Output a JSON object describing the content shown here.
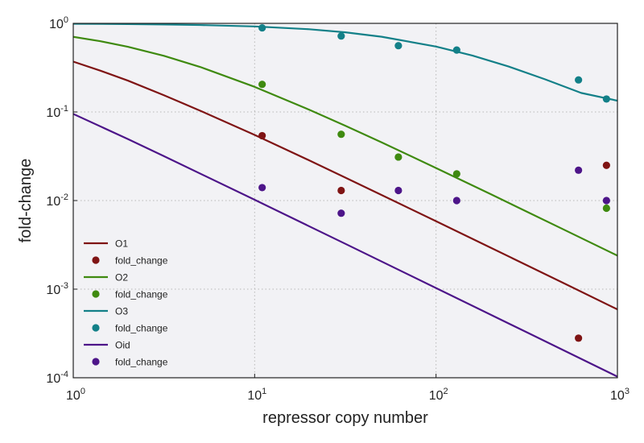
{
  "chart_data": {
    "type": "line",
    "xlabel": "repressor copy number",
    "ylabel": "fold-change",
    "xscale": "log",
    "yscale": "log",
    "xlim": [
      1,
      1000
    ],
    "ylim": [
      0.0001,
      1
    ],
    "grid": true,
    "legend_position": "lower-left",
    "x_ticks": [
      {
        "value": 1,
        "base": "10",
        "exp": "0"
      },
      {
        "value": 10,
        "base": "10",
        "exp": "1"
      },
      {
        "value": 100,
        "base": "10",
        "exp": "2"
      },
      {
        "value": 1000,
        "base": "10",
        "exp": "3"
      }
    ],
    "y_ticks": [
      {
        "value": 0.0001,
        "base": "10",
        "exp": "-4"
      },
      {
        "value": 0.001,
        "base": "10",
        "exp": "-3"
      },
      {
        "value": 0.01,
        "base": "10",
        "exp": "-2"
      },
      {
        "value": 0.1,
        "base": "10",
        "exp": "-1"
      },
      {
        "value": 1,
        "base": "10",
        "exp": "0"
      }
    ],
    "series": [
      {
        "name": "O1",
        "color": "#7f1414",
        "x": [
          1,
          1.414,
          2,
          3.162,
          5.012,
          10,
          20,
          31.62,
          50.12,
          100,
          200,
          316.2,
          501.2,
          1000
        ],
        "y": [
          0.37,
          0.292,
          0.226,
          0.1545,
          0.1033,
          0.0551,
          0.0284,
          0.01817,
          0.01155,
          0.00585,
          0.00294,
          0.001865,
          0.001178,
          0.000591
        ]
      },
      {
        "name": "O2",
        "color": "#3f8a10",
        "x": [
          1,
          1.414,
          2,
          3.162,
          5.012,
          10,
          20,
          31.62,
          50.12,
          100,
          200,
          316.2,
          501.2,
          1000
        ],
        "y": [
          0.705,
          0.628,
          0.544,
          0.43,
          0.322,
          0.192,
          0.106,
          0.0699,
          0.0454,
          0.0233,
          0.01182,
          0.0075,
          0.00475,
          0.00239
        ]
      },
      {
        "name": "O3",
        "color": "#138088",
        "x": [
          1,
          2,
          3.162,
          5.012,
          10,
          20,
          31.62,
          50.12,
          100,
          158.5,
          251.2,
          398.1,
          631,
          1000
        ],
        "y": [
          0.99,
          0.982,
          0.972,
          0.958,
          0.923,
          0.858,
          0.792,
          0.706,
          0.547,
          0.433,
          0.326,
          0.234,
          0.164,
          0.134
        ]
      },
      {
        "name": "Oid",
        "color": "#4d1589",
        "x": [
          1,
          2,
          3.162,
          10,
          31.62,
          100,
          316.2,
          1000
        ],
        "y": [
          0.095,
          0.0495,
          0.0317,
          0.0102,
          0.00325,
          0.00103,
          0.000326,
          0.000103
        ]
      }
    ],
    "scatter": [
      {
        "name": "fold_change",
        "series_ref": "O1",
        "color": "#7f1414",
        "x": [
          11,
          30,
          610,
          870
        ],
        "y": [
          0.054,
          0.013,
          0.00028,
          0.025
        ]
      },
      {
        "name": "fold_change",
        "series_ref": "O2",
        "color": "#3f8a10",
        "x": [
          11,
          30,
          62,
          130,
          870
        ],
        "y": [
          0.205,
          0.056,
          0.031,
          0.02,
          0.0082
        ]
      },
      {
        "name": "fold_change",
        "series_ref": "O3",
        "color": "#138088",
        "x": [
          11,
          30,
          62,
          130,
          610,
          870
        ],
        "y": [
          0.89,
          0.72,
          0.56,
          0.5,
          0.23,
          0.14
        ]
      },
      {
        "name": "fold_change",
        "series_ref": "Oid",
        "color": "#4d1589",
        "x": [
          11,
          30,
          62,
          130,
          610,
          870
        ],
        "y": [
          0.014,
          0.0072,
          0.013,
          0.01,
          0.022,
          0.01
        ]
      }
    ],
    "legend": [
      {
        "label": "O1",
        "kind": "line",
        "color": "#7f1414"
      },
      {
        "label": "fold_change",
        "kind": "marker",
        "color": "#7f1414"
      },
      {
        "label": "O2",
        "kind": "line",
        "color": "#3f8a10"
      },
      {
        "label": "fold_change",
        "kind": "marker",
        "color": "#3f8a10"
      },
      {
        "label": "O3",
        "kind": "line",
        "color": "#138088"
      },
      {
        "label": "fold_change",
        "kind": "marker",
        "color": "#138088"
      },
      {
        "label": "Oid",
        "kind": "line",
        "color": "#4d1589"
      },
      {
        "label": "fold_change",
        "kind": "marker",
        "color": "#4d1589"
      }
    ],
    "plot_background": "#f2f2f5",
    "grid_color": "#b8b8b8"
  }
}
